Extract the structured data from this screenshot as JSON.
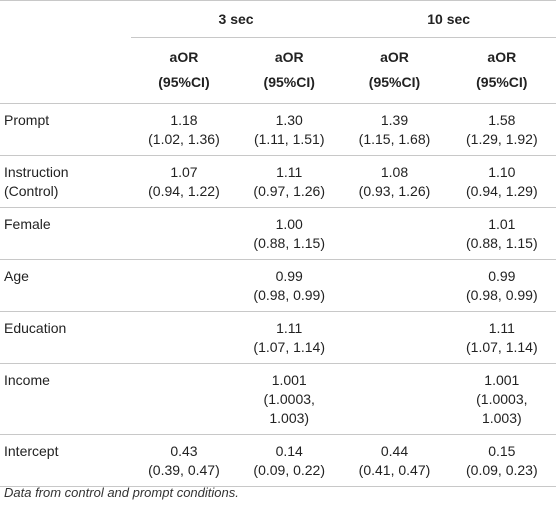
{
  "groups": [
    "3 sec",
    "10 sec"
  ],
  "subheaders": [
    "aOR\n(95%CI)",
    "aOR\n(95%CI)",
    "aOR\n(95%CI)",
    "aOR\n(95%CI)"
  ],
  "rows": [
    {
      "label": "Prompt",
      "cells": [
        "1.18\n(1.02, 1.36)",
        "1.30\n(1.11, 1.51)",
        "1.39\n(1.15, 1.68)",
        "1.58\n(1.29, 1.92)"
      ]
    },
    {
      "label": "Instruction\n(Control)",
      "cells": [
        "1.07\n(0.94, 1.22)",
        "1.11\n(0.97, 1.26)",
        "1.08\n(0.93, 1.26)",
        "1.10\n(0.94, 1.29)"
      ]
    },
    {
      "label": "Female",
      "cells": [
        "",
        "1.00\n(0.88, 1.15)",
        "",
        "1.01\n(0.88, 1.15)"
      ]
    },
    {
      "label": "Age",
      "cells": [
        "",
        "0.99\n(0.98, 0.99)",
        "",
        "0.99\n(0.98, 0.99)"
      ]
    },
    {
      "label": "Education",
      "cells": [
        "",
        "1.11\n(1.07, 1.14)",
        "",
        "1.11\n(1.07, 1.14)"
      ]
    },
    {
      "label": "Income",
      "cells": [
        "",
        "1.001\n(1.0003,\n1.003)",
        "",
        "1.001\n(1.0003,\n1.003)"
      ]
    },
    {
      "label": "Intercept",
      "cells": [
        "0.43\n(0.39, 0.47)",
        "0.14\n(0.09, 0.22)",
        "0.44\n(0.41, 0.47)",
        "0.15\n(0.09, 0.23)"
      ]
    }
  ],
  "footnote": "Data from control and prompt conditions."
}
